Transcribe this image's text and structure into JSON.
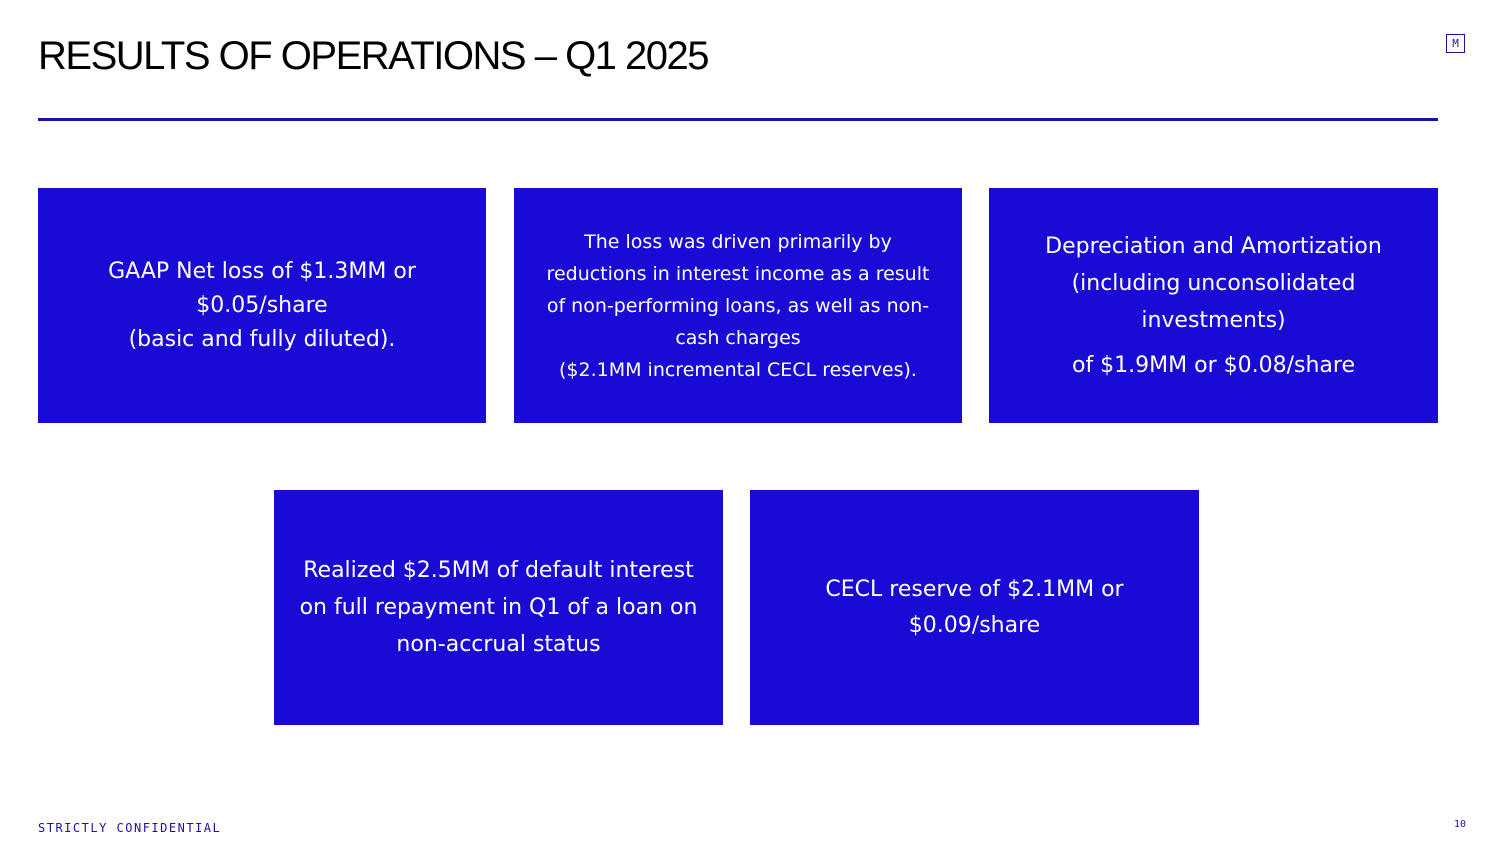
{
  "slide": {
    "title": "RESULTS OF OPERATIONS – Q1 2025",
    "logo_letter": "M",
    "footer_left": "STRICTLY CONFIDENTIAL",
    "page_number": "10"
  },
  "cards": [
    {
      "lines": [
        "GAAP Net loss of $1.3MM or",
        "$0.05/share",
        "(basic and fully diluted)."
      ]
    },
    {
      "lines": [
        "The loss was driven primarily by",
        "reductions in interest income as a result",
        "of non-performing loans, as well as non-",
        "cash charges",
        "($2.1MM incremental CECL reserves)."
      ]
    },
    {
      "lines": [
        "Depreciation and Amortization",
        "(including unconsolidated",
        "investments)",
        "of $1.9MM or $0.08/share"
      ]
    },
    {
      "lines": [
        "Realized $2.5MM of default interest",
        "on full repayment in Q1 of a loan on",
        "non-accrual status"
      ]
    },
    {
      "lines": [
        "CECL reserve of $2.1MM or",
        "$0.09/share"
      ]
    }
  ],
  "colors": {
    "card_background": "#1a0ad6",
    "accent": "#1a12a8",
    "text_on_card": "#ffffff"
  }
}
